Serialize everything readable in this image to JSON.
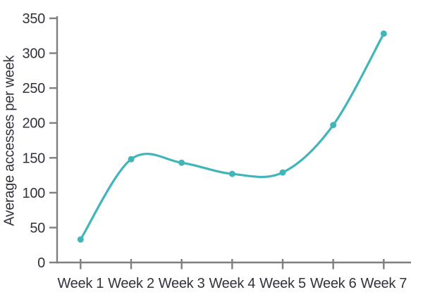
{
  "chart_data": {
    "type": "line",
    "categories": [
      "Week 1",
      "Week 2",
      "Week 3",
      "Week 4",
      "Week 5",
      "Week 6",
      "Week 7"
    ],
    "values": [
      33,
      148,
      143,
      127,
      129,
      197,
      328
    ],
    "title": "",
    "xlabel": "",
    "ylabel": "Average accesses per week",
    "ylim": [
      0,
      350
    ],
    "ytick_step": 50,
    "yticks": [
      0,
      50,
      100,
      150,
      200,
      250,
      300,
      350
    ],
    "grid": false,
    "legend": false,
    "smooth": true,
    "markers": true,
    "line_color": "#42b5b9",
    "marker_color": "#42b5b9",
    "axis_color": "#7f7f7f",
    "text_color": "#32323c"
  }
}
